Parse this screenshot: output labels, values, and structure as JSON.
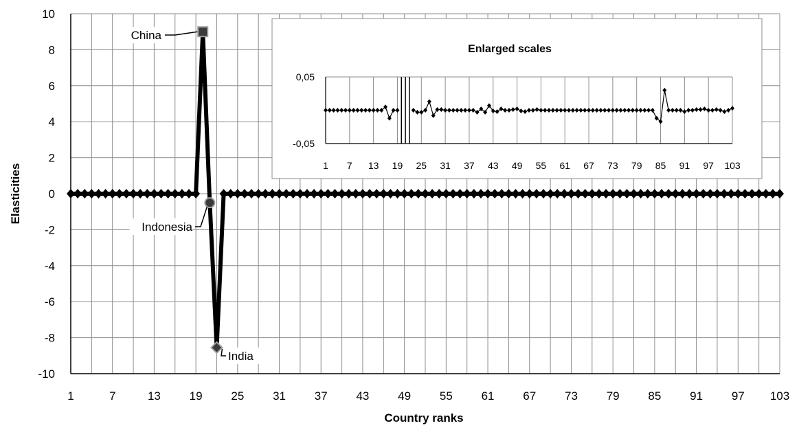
{
  "chart_data": [
    {
      "type": "line",
      "title": "",
      "xlabel": "Country ranks",
      "ylabel": "Elasticities",
      "xlim": [
        1,
        103
      ],
      "ylim": [
        -10,
        10
      ],
      "x_ticks": [
        1,
        7,
        13,
        19,
        25,
        31,
        37,
        43,
        49,
        55,
        61,
        67,
        73,
        79,
        85,
        91,
        97,
        103
      ],
      "y_ticks": [
        -10,
        -8,
        -6,
        -4,
        -2,
        0,
        2,
        4,
        6,
        8,
        10
      ],
      "x_tick_labels": [
        "1",
        "7",
        "13",
        "19",
        "25",
        "31",
        "37",
        "43",
        "49",
        "55",
        "61",
        "67",
        "73",
        "79",
        "85",
        "91",
        "97",
        "103"
      ],
      "y_tick_labels": [
        "-10",
        "-8",
        "-6",
        "-4",
        "-2",
        "0",
        "2",
        "4",
        "6",
        "8",
        "10"
      ],
      "grid": true,
      "series": [
        {
          "x": [
            1,
            2,
            3,
            4,
            5,
            6,
            7,
            8,
            9,
            10,
            11,
            12,
            13,
            14,
            15,
            16,
            17,
            18,
            19,
            20,
            21,
            22,
            23,
            24,
            25,
            26,
            27,
            28,
            29,
            30,
            31,
            32,
            33,
            34,
            35,
            36,
            37,
            38,
            39,
            40,
            41,
            42,
            43,
            44,
            45,
            46,
            47,
            48,
            49,
            50,
            51,
            52,
            53,
            54,
            55,
            56,
            57,
            58,
            59,
            60,
            61,
            62,
            63,
            64,
            65,
            66,
            67,
            68,
            69,
            70,
            71,
            72,
            73,
            74,
            75,
            76,
            77,
            78,
            79,
            80,
            81,
            82,
            83,
            84,
            85,
            86,
            87,
            88,
            89,
            90,
            91,
            92,
            93,
            94,
            95,
            96,
            97,
            98,
            99,
            100,
            101,
            102,
            103
          ],
          "values": [
            0,
            0,
            0,
            0,
            0,
            0,
            0,
            0,
            0,
            0,
            0,
            0,
            0,
            0,
            0,
            0,
            0,
            0,
            0,
            9,
            -0.5,
            -8.55,
            0,
            0,
            0,
            0,
            0,
            0,
            0,
            0,
            0,
            0,
            0,
            0,
            0,
            0,
            0,
            0,
            0,
            0,
            0,
            0,
            0,
            0,
            0,
            0,
            0,
            0,
            0,
            0,
            0,
            0,
            0,
            0,
            0,
            0,
            0,
            0,
            0,
            0,
            0,
            0,
            0,
            0,
            0,
            0,
            0,
            0,
            0,
            0,
            0,
            0,
            0,
            0,
            0,
            0,
            0,
            0,
            0,
            0,
            0,
            0,
            0,
            0,
            0,
            0,
            0,
            0,
            0,
            0,
            0,
            0,
            0,
            0,
            0,
            0,
            0,
            0,
            0,
            0,
            0,
            0,
            0
          ]
        }
      ],
      "annotations": [
        {
          "text": "China",
          "x": 20,
          "y": 9
        },
        {
          "text": "Indonesia",
          "x": 21,
          "y": -0.5
        },
        {
          "text": "India",
          "x": 22,
          "y": -8.55
        }
      ]
    },
    {
      "type": "line",
      "title": "Enlarged scales",
      "xlim": [
        1,
        103
      ],
      "ylim": [
        -0.05,
        0.05
      ],
      "x_ticks": [
        1,
        7,
        13,
        19,
        25,
        31,
        37,
        43,
        49,
        55,
        61,
        67,
        73,
        79,
        85,
        91,
        97,
        103
      ],
      "x_tick_labels": [
        "1",
        "7",
        "13",
        "19",
        "25",
        "31",
        "37",
        "43",
        "49",
        "55",
        "61",
        "67",
        "73",
        "79",
        "85",
        "91",
        "97",
        "103"
      ],
      "y_tick_labels": [
        "0,05",
        "-0,05"
      ],
      "grid": true,
      "series": [
        {
          "x": [
            1,
            2,
            3,
            4,
            5,
            6,
            7,
            8,
            9,
            10,
            11,
            12,
            13,
            14,
            15,
            16,
            17,
            18,
            19,
            23,
            24,
            25,
            26,
            27,
            28,
            29,
            30,
            31,
            32,
            33,
            34,
            35,
            36,
            37,
            38,
            39,
            40,
            41,
            42,
            43,
            44,
            45,
            46,
            47,
            48,
            49,
            50,
            51,
            52,
            53,
            54,
            55,
            56,
            57,
            58,
            59,
            60,
            61,
            62,
            63,
            64,
            65,
            66,
            67,
            68,
            69,
            70,
            71,
            72,
            73,
            74,
            75,
            76,
            77,
            78,
            79,
            80,
            81,
            82,
            83,
            84,
            85,
            86,
            87,
            88,
            89,
            90,
            91,
            92,
            93,
            94,
            95,
            96,
            97,
            98,
            99,
            100,
            101,
            102,
            103
          ],
          "values": [
            0,
            0,
            0,
            0,
            0,
            0,
            0,
            0,
            0,
            0,
            0,
            0,
            0,
            0,
            0,
            0.005,
            -0.012,
            0,
            0,
            0,
            -0.003,
            -0.003,
            0,
            0.013,
            -0.008,
            0.001,
            0.001,
            0,
            0,
            0,
            0,
            0,
            0,
            0,
            0,
            -0.003,
            0.002,
            -0.003,
            0.007,
            -0.001,
            -0.002,
            0.002,
            0,
            0,
            0.001,
            0.002,
            -0.001,
            -0.002,
            0,
            0,
            0.001,
            0,
            0,
            0,
            0,
            0,
            0,
            0,
            0,
            0,
            0,
            0,
            0,
            0,
            0,
            0,
            0,
            0,
            0,
            0,
            0,
            0,
            0,
            0,
            0,
            0,
            0,
            0,
            0,
            0,
            -0.012,
            -0.017,
            0.03,
            0,
            0,
            0,
            0,
            -0.002,
            0,
            0,
            0.001,
            0.001,
            0.002,
            0,
            0,
            0.001,
            0,
            -0.002,
            0,
            0.003
          ]
        }
      ]
    }
  ]
}
